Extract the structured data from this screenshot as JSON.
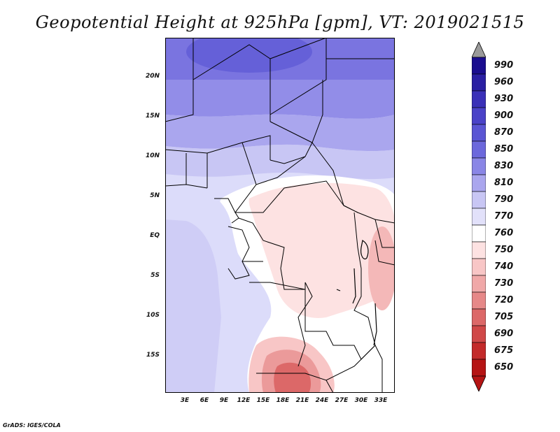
{
  "title": "Geopotential Height at 925hPa [gpm], VT: 2019021515",
  "credit": "GrADS: IGES/COLA",
  "y_axis_labels": [
    "20N",
    "15N",
    "10N",
    "5N",
    "EQ",
    "5S",
    "10S",
    "15S"
  ],
  "x_axis_labels": [
    "3E",
    "6E",
    "9E",
    "12E",
    "15E",
    "18E",
    "21E",
    "24E",
    "27E",
    "30E",
    "33E"
  ],
  "colorbar": {
    "levels": [
      "990",
      "960",
      "930",
      "900",
      "870",
      "850",
      "830",
      "810",
      "790",
      "770",
      "760",
      "750",
      "740",
      "730",
      "720",
      "705",
      "690",
      "675",
      "650"
    ],
    "colors": [
      "#1a0d8f",
      "#2a1fa3",
      "#3a30b8",
      "#4a42c8",
      "#5a55d4",
      "#6c68dc",
      "#8a86e6",
      "#aaa6ee",
      "#c8c6f4",
      "#e2e1fa",
      "#ffffff",
      "#fde2e2",
      "#f8c6c6",
      "#f0a8a8",
      "#e68888",
      "#dc6868",
      "#d04848",
      "#c32a2a",
      "#b51414"
    ],
    "top_cap_color": "#9a9a9a"
  }
}
